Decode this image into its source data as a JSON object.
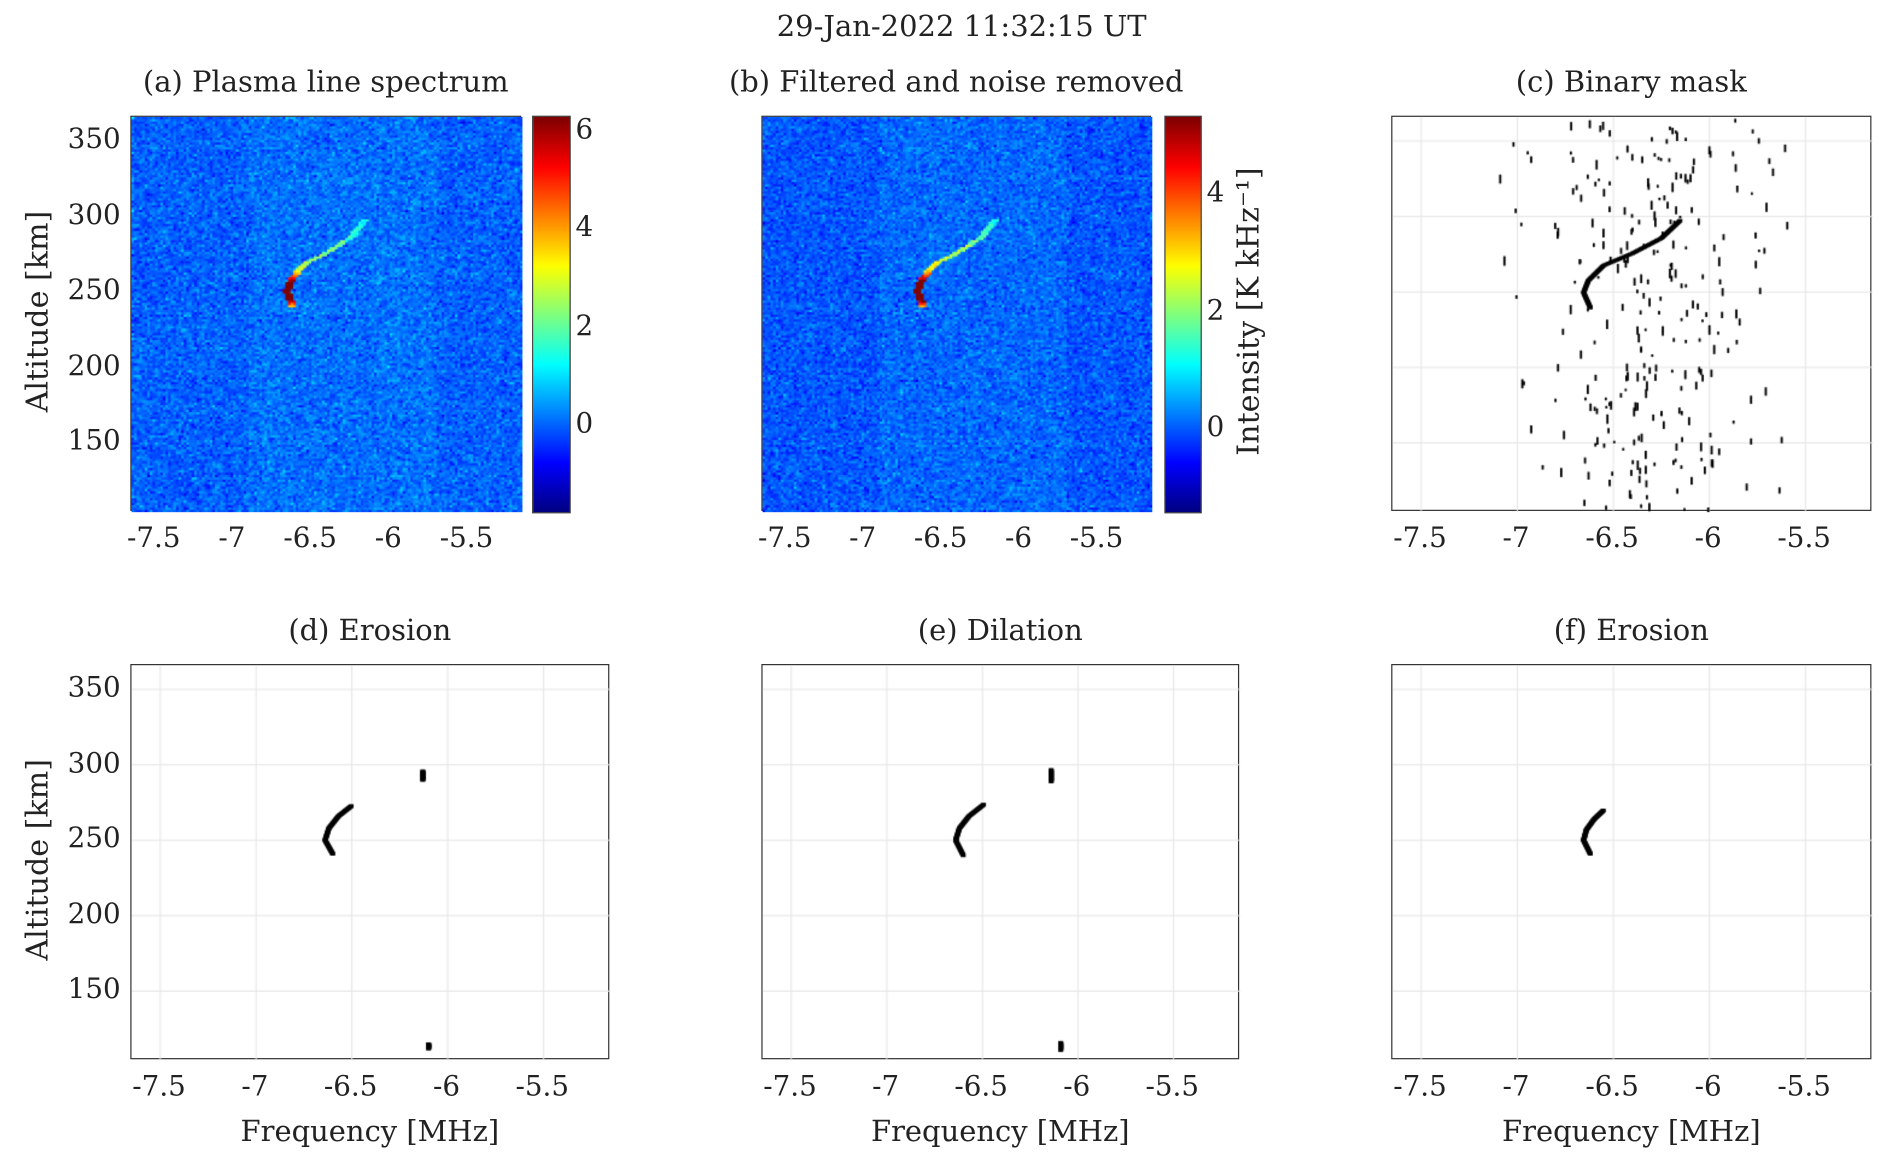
{
  "suptitle": "29-Jan-2022 11:32:15 UT",
  "chart_data": [
    {
      "type": "heatmap",
      "title": "(a) Plasma line spectrum",
      "ylabel": "Altitude [km]",
      "xlabel": "",
      "xlim": [
        -7.65,
        -5.15
      ],
      "ylim": [
        104,
        366
      ],
      "xticks": [
        "-7.5",
        "-7",
        "-6.5",
        "-6",
        "-5.5"
      ],
      "yticks": [
        "150",
        "200",
        "250",
        "300",
        "350"
      ],
      "colormap": "jet",
      "clim": [
        -1.77,
        6.3
      ],
      "colorbar_ticks": [
        "0",
        "2",
        "4",
        "6"
      ],
      "feature_curve": {
        "x": [
          -6.62,
          -6.655,
          -6.63,
          -6.55,
          -6.4,
          -6.25,
          -6.15
        ],
        "y": [
          240,
          250,
          258,
          268,
          276,
          286,
          298
        ]
      },
      "peak_intensity": 6.2
    },
    {
      "type": "heatmap",
      "title": "(b) Filtered and noise removed",
      "xlabel": "",
      "xlim": [
        -7.65,
        -5.15
      ],
      "ylim": [
        104,
        366
      ],
      "xticks": [
        "-7.5",
        "-7",
        "-6.5",
        "-6",
        "-5.5"
      ],
      "colormap": "jet",
      "clim": [
        -1.4,
        5.3
      ],
      "colorbar_ticks": [
        "0",
        "2",
        "4"
      ],
      "colorbar_label": "Intensity [K kHz⁻¹]",
      "feature_curve": {
        "x": [
          -6.62,
          -6.655,
          -6.63,
          -6.55,
          -6.4,
          -6.25,
          -6.15
        ],
        "y": [
          240,
          250,
          258,
          268,
          276,
          286,
          298
        ]
      },
      "peak_intensity": 5.1
    },
    {
      "type": "heatmap",
      "title": "(c) Binary mask",
      "xlim": [
        -7.65,
        -5.15
      ],
      "ylim": [
        104,
        366
      ],
      "xticks": [
        "-7.5",
        "-7",
        "-6.5",
        "-6",
        "-5.5"
      ],
      "colormap": "binary",
      "grid": true,
      "scatter_extent_x": [
        -7.1,
        -5.55
      ],
      "feature_curve": {
        "x": [
          -6.62,
          -6.655,
          -6.63,
          -6.55,
          -6.4,
          -6.25,
          -6.15
        ],
        "y": [
          240,
          250,
          258,
          268,
          276,
          286,
          298
        ]
      }
    },
    {
      "type": "heatmap",
      "title": "(d) Erosion",
      "ylabel": "Altitude [km]",
      "xlabel": "Frequency [MHz]",
      "xlim": [
        -7.65,
        -5.15
      ],
      "ylim": [
        104,
        366
      ],
      "xticks": [
        "-7.5",
        "-7",
        "-6.5",
        "-6",
        "-5.5"
      ],
      "yticks": [
        "150",
        "200",
        "250",
        "300",
        "350"
      ],
      "colormap": "binary",
      "grid": true,
      "regions": [
        {
          "x": [
            -6.6,
            -6.64,
            -6.62,
            -6.57,
            -6.5
          ],
          "y": [
            241,
            250,
            258,
            266,
            273
          ]
        },
        {
          "x": [
            -6.13,
            -6.13
          ],
          "y": [
            290,
            296
          ]
        },
        {
          "x": [
            -6.1,
            -6.1
          ],
          "y": [
            112,
            115
          ]
        }
      ]
    },
    {
      "type": "heatmap",
      "title": "(e) Dilation",
      "xlabel": "Frequency [MHz]",
      "xlim": [
        -7.65,
        -5.15
      ],
      "ylim": [
        104,
        366
      ],
      "xticks": [
        "-7.5",
        "-7",
        "-6.5",
        "-6",
        "-5.5"
      ],
      "colormap": "binary",
      "grid": true,
      "regions": [
        {
          "x": [
            -6.6,
            -6.64,
            -6.62,
            -6.57,
            -6.49
          ],
          "y": [
            240,
            250,
            258,
            266,
            274
          ]
        },
        {
          "x": [
            -6.14,
            -6.14
          ],
          "y": [
            289,
            297
          ]
        },
        {
          "x": [
            -6.09,
            -6.09
          ],
          "y": [
            111,
            116
          ]
        }
      ]
    },
    {
      "type": "heatmap",
      "title": "(f) Erosion",
      "xlabel": "Frequency [MHz]",
      "xlim": [
        -7.65,
        -5.15
      ],
      "ylim": [
        104,
        366
      ],
      "xticks": [
        "-7.5",
        "-7",
        "-6.5",
        "-6",
        "-5.5"
      ],
      "colormap": "binary",
      "grid": true,
      "regions": [
        {
          "x": [
            -6.62,
            -6.655,
            -6.64,
            -6.6,
            -6.55
          ],
          "y": [
            241,
            250,
            257,
            264,
            270
          ]
        }
      ]
    }
  ]
}
